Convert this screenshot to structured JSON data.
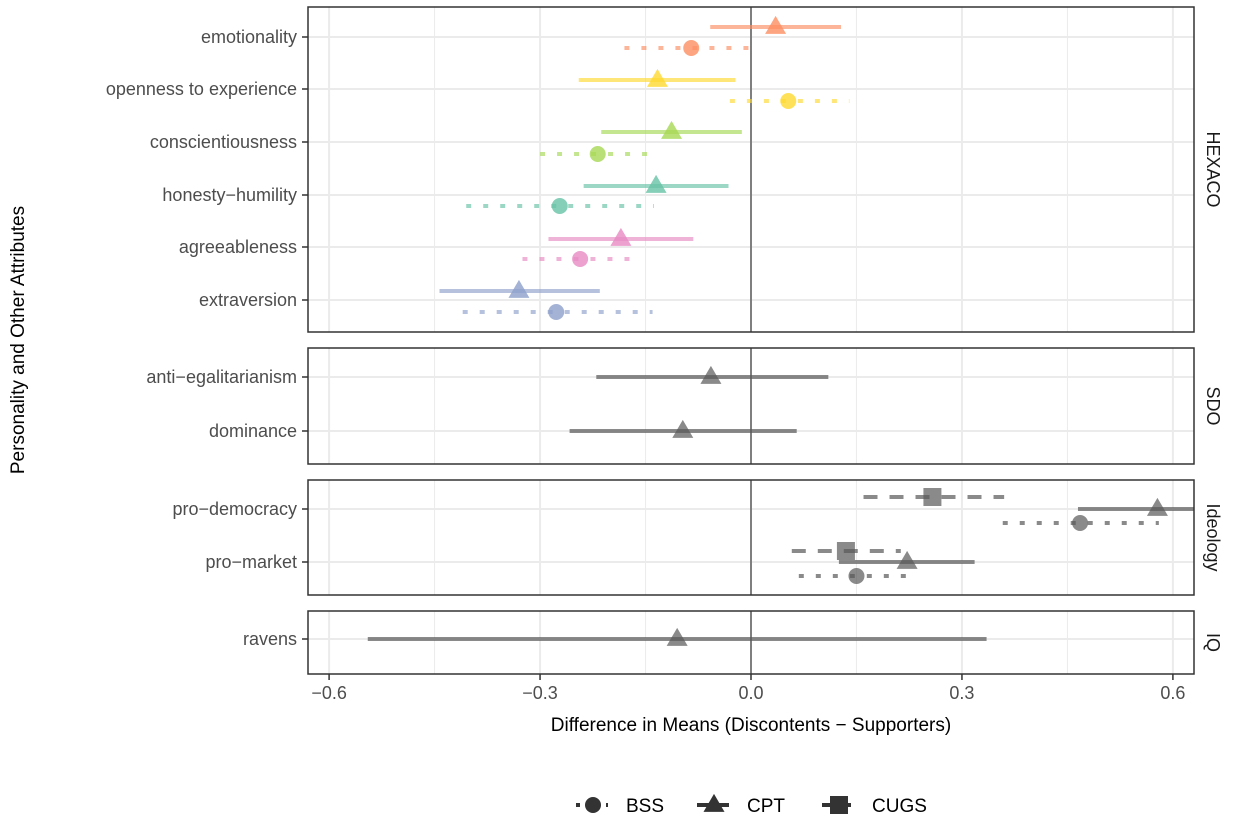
{
  "chart_data": {
    "type": "forest",
    "xlabel": "Difference in Means (Discontents − Supporters)",
    "ylabel": "Personality and Other Attributes",
    "xlim": [
      -0.63,
      0.63
    ],
    "x_ticks": [
      -0.6,
      -0.3,
      0.0,
      0.3,
      0.6
    ],
    "x_tick_labels": [
      "−0.6",
      "−0.3",
      "0.0",
      "0.3",
      "0.6"
    ],
    "reference_line": 0,
    "legend": {
      "position": "bottom",
      "entries": [
        {
          "name": "BSS",
          "shape": "circle",
          "line": "dotted"
        },
        {
          "name": "CPT",
          "shape": "triangle",
          "line": "solid"
        },
        {
          "name": "CUGS",
          "shape": "square",
          "line": "dashed"
        }
      ]
    },
    "colors": {
      "emotionality": "#FC8D62",
      "openness": "#FFD92F",
      "conscientiousness": "#A6D854",
      "honesty": "#66C2A5",
      "agreeableness": "#E78AC3",
      "extraversion": "#8DA0CB",
      "other": "#595959",
      "panel_border": "#333333",
      "grid": "#ebebeb",
      "reference": "#7f7f7f"
    },
    "panels": [
      {
        "label": "HEXACO",
        "rows": [
          {
            "label": "emotionality",
            "color_key": "emotionality",
            "estimates": [
              {
                "study": "CPT",
                "est": 0.035,
                "lo": -0.058,
                "hi": 0.128
              },
              {
                "study": "BSS",
                "est": -0.085,
                "lo": -0.18,
                "hi": 0.012
              }
            ]
          },
          {
            "label": "openness to experience",
            "color_key": "openness",
            "estimates": [
              {
                "study": "CPT",
                "est": -0.133,
                "lo": -0.245,
                "hi": -0.022
              },
              {
                "study": "BSS",
                "est": 0.053,
                "lo": -0.03,
                "hi": 0.14
              }
            ]
          },
          {
            "label": "conscientiousness",
            "color_key": "conscientiousness",
            "estimates": [
              {
                "study": "CPT",
                "est": -0.113,
                "lo": -0.213,
                "hi": -0.013
              },
              {
                "study": "BSS",
                "est": -0.218,
                "lo": -0.3,
                "hi": -0.133
              }
            ]
          },
          {
            "label": "honesty−humility",
            "color_key": "honesty",
            "estimates": [
              {
                "study": "CPT",
                "est": -0.135,
                "lo": -0.238,
                "hi": -0.032
              },
              {
                "study": "BSS",
                "est": -0.272,
                "lo": -0.405,
                "hi": -0.138
              }
            ]
          },
          {
            "label": "agreeableness",
            "color_key": "agreeableness",
            "estimates": [
              {
                "study": "CPT",
                "est": -0.185,
                "lo": -0.288,
                "hi": -0.082
              },
              {
                "study": "BSS",
                "est": -0.243,
                "lo": -0.325,
                "hi": -0.16
              }
            ]
          },
          {
            "label": "extraversion",
            "color_key": "extraversion",
            "estimates": [
              {
                "study": "CPT",
                "est": -0.33,
                "lo": -0.443,
                "hi": -0.215
              },
              {
                "study": "BSS",
                "est": -0.277,
                "lo": -0.41,
                "hi": -0.14
              }
            ]
          }
        ]
      },
      {
        "label": "SDO",
        "rows": [
          {
            "label": "anti−egalitarianism",
            "color_key": "other",
            "estimates": [
              {
                "study": "CPT",
                "est": -0.057,
                "lo": -0.22,
                "hi": 0.11
              }
            ]
          },
          {
            "label": "dominance",
            "color_key": "other",
            "estimates": [
              {
                "study": "CPT",
                "est": -0.097,
                "lo": -0.258,
                "hi": 0.065
              }
            ]
          }
        ]
      },
      {
        "label": "Ideology",
        "rows": [
          {
            "label": "pro−democracy",
            "color_key": "other",
            "estimates": [
              {
                "study": "CUGS",
                "est": 0.258,
                "lo": 0.16,
                "hi": 0.36
              },
              {
                "study": "CPT",
                "est": 0.578,
                "lo": 0.465,
                "hi": 0.63
              },
              {
                "study": "BSS",
                "est": 0.468,
                "lo": 0.358,
                "hi": 0.58
              }
            ]
          },
          {
            "label": "pro−market",
            "color_key": "other",
            "estimates": [
              {
                "study": "CUGS",
                "est": 0.135,
                "lo": 0.058,
                "hi": 0.213
              },
              {
                "study": "CPT",
                "est": 0.222,
                "lo": 0.125,
                "hi": 0.318
              },
              {
                "study": "BSS",
                "est": 0.15,
                "lo": 0.068,
                "hi": 0.233
              }
            ]
          }
        ]
      },
      {
        "label": "IQ",
        "rows": [
          {
            "label": "ravens",
            "color_key": "other",
            "estimates": [
              {
                "study": "CPT",
                "est": -0.105,
                "lo": -0.545,
                "hi": 0.335
              }
            ]
          }
        ]
      }
    ]
  }
}
